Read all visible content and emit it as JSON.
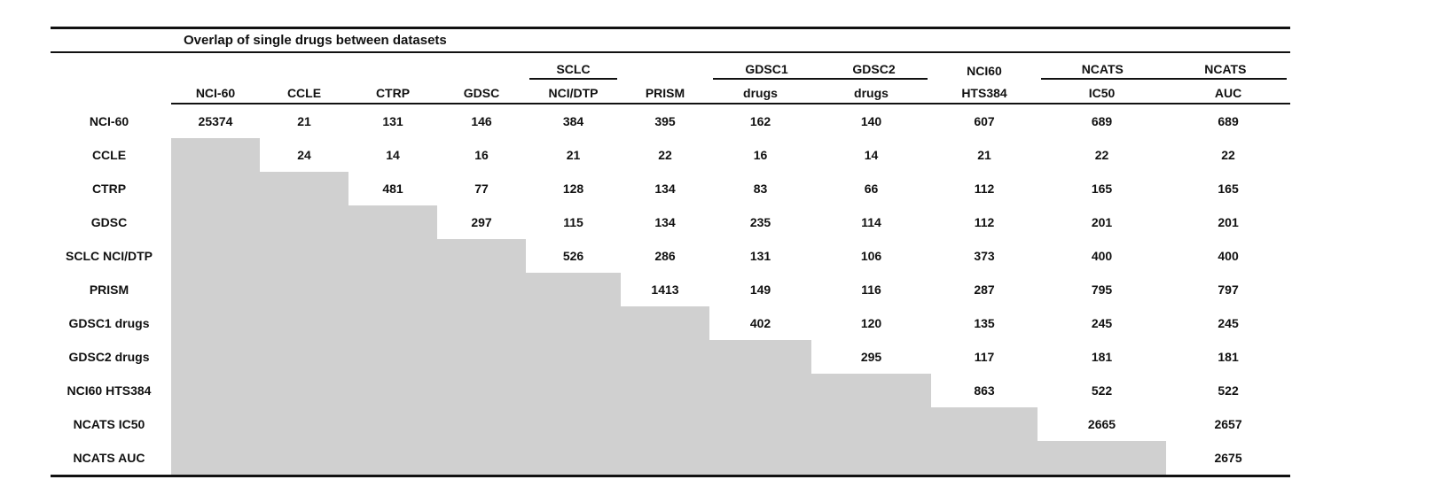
{
  "title": "Overlap of single drugs between datasets",
  "colors": {
    "mask": "#d0d0d0",
    "text": "#111111",
    "rule": "#111111"
  },
  "header": {
    "groups": {
      "sclc": "SCLC",
      "gdsc1": "GDSC1",
      "gdsc2": "GDSC2",
      "nci60": "NCI60",
      "ncats_ic50": "NCATS",
      "ncats_auc": "NCATS"
    },
    "columns": [
      "NCI-60",
      "CCLE",
      "CTRP",
      "GDSC",
      "NCI/DTP",
      "PRISM",
      "drugs",
      "drugs",
      "HTS384",
      "IC50",
      "AUC"
    ]
  },
  "rows": [
    {
      "label": "NCI-60",
      "values": [
        "25374",
        "21",
        "131",
        "146",
        "384",
        "395",
        "162",
        "140",
        "607",
        "689",
        "689"
      ]
    },
    {
      "label": "CCLE",
      "values": [
        "",
        "24",
        "14",
        "16",
        "21",
        "22",
        "16",
        "14",
        "21",
        "22",
        "22"
      ]
    },
    {
      "label": "CTRP",
      "values": [
        "",
        "",
        "481",
        "77",
        "128",
        "134",
        "83",
        "66",
        "112",
        "165",
        "165"
      ]
    },
    {
      "label": "GDSC",
      "values": [
        "",
        "",
        "",
        "297",
        "115",
        "134",
        "235",
        "114",
        "112",
        "201",
        "201"
      ]
    },
    {
      "label": "SCLC NCI/DTP",
      "values": [
        "",
        "",
        "",
        "",
        "526",
        "286",
        "131",
        "106",
        "373",
        "400",
        "400"
      ]
    },
    {
      "label": "PRISM",
      "values": [
        "",
        "",
        "",
        "",
        "",
        "1413",
        "149",
        "116",
        "287",
        "795",
        "797"
      ]
    },
    {
      "label": "GDSC1 drugs",
      "values": [
        "",
        "",
        "",
        "",
        "",
        "",
        "402",
        "120",
        "135",
        "245",
        "245"
      ]
    },
    {
      "label": "GDSC2 drugs",
      "values": [
        "",
        "",
        "",
        "",
        "",
        "",
        "",
        "295",
        "117",
        "181",
        "181"
      ]
    },
    {
      "label": "NCI60 HTS384",
      "values": [
        "",
        "",
        "",
        "",
        "",
        "",
        "",
        "",
        "863",
        "522",
        "522"
      ]
    },
    {
      "label": "NCATS IC50",
      "values": [
        "",
        "",
        "",
        "",
        "",
        "",
        "",
        "",
        "",
        "2665",
        "2657"
      ]
    },
    {
      "label": "NCATS AUC",
      "values": [
        "",
        "",
        "",
        "",
        "",
        "",
        "",
        "",
        "",
        "",
        "2675"
      ]
    }
  ]
}
